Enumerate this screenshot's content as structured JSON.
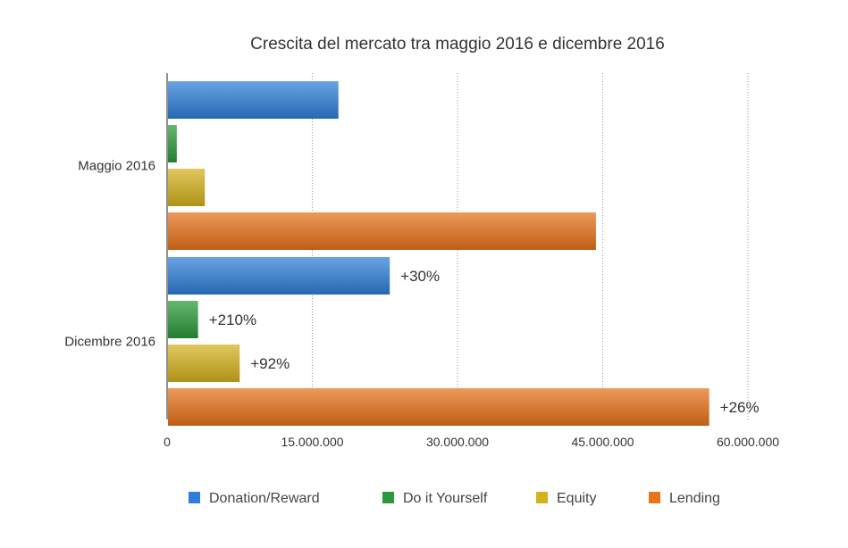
{
  "chart_data": {
    "type": "bar",
    "orientation": "horizontal",
    "title": "Crescita del mercato tra maggio 2016 e dicembre 2016",
    "xlabel": "",
    "ylabel": "",
    "categories": [
      "Maggio 2016",
      "Dicembre 2016"
    ],
    "xlim": [
      0,
      60000000
    ],
    "xticks": [
      0,
      15000000,
      30000000,
      45000000,
      60000000
    ],
    "xtick_labels": [
      "0",
      "15.000.000",
      "30.000.000",
      "45.000.000",
      "60.000.000"
    ],
    "grid": "vertical dotted",
    "legend_position": "bottom",
    "series": [
      {
        "name": "Donation/Reward",
        "color": "#2f7fd8",
        "values": [
          17700000,
          23000000
        ],
        "labels": [
          "",
          "+30%"
        ]
      },
      {
        "name": "Do it Yourself",
        "color": "#2b9a3a",
        "values": [
          1000000,
          3200000
        ],
        "labels": [
          "",
          "+210%"
        ]
      },
      {
        "name": "Equity",
        "color": "#d6b21e",
        "values": [
          3900000,
          7500000
        ],
        "labels": [
          "",
          "+92%"
        ]
      },
      {
        "name": "Lending",
        "color": "#e8731a",
        "values": [
          44300000,
          56000000
        ],
        "labels": [
          "",
          "+26%"
        ]
      }
    ]
  }
}
